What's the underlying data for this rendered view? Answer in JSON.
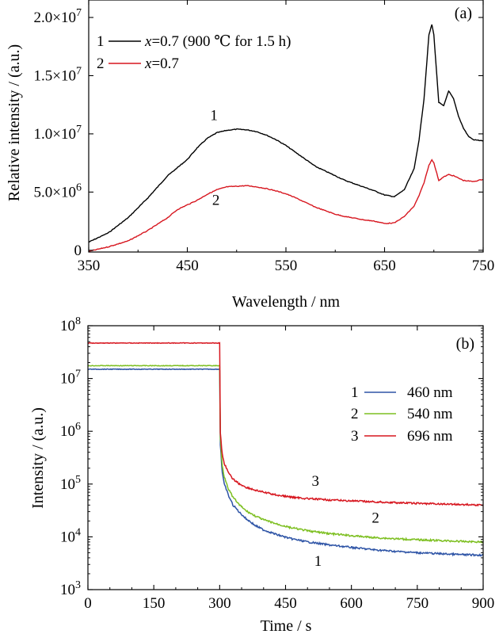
{
  "chart_data": [
    {
      "type": "line",
      "panel_label": "(a)",
      "xlabel": "Wavelength / nm",
      "ylabel": "Relative intensity / (a.u.)",
      "xlim": [
        350,
        750
      ],
      "ylim": [
        -150000,
        21500000
      ],
      "xticks": [
        350,
        450,
        550,
        650,
        750
      ],
      "yticks": [
        {
          "value": 0,
          "mantissa": "0",
          "exponent": ""
        },
        {
          "value": 5000000,
          "mantissa": "5.0×10",
          "exponent": "6"
        },
        {
          "value": 10000000,
          "mantissa": "1.0×10",
          "exponent": "7"
        },
        {
          "value": 15000000,
          "mantissa": "1.5×10",
          "exponent": "7"
        },
        {
          "value": 20000000,
          "mantissa": "2.0×10",
          "exponent": "7"
        }
      ],
      "legend_position": "top-left",
      "series": [
        {
          "id": "1",
          "legend_num": "1",
          "legend_var": "x",
          "legend_text": "=0.7 (900 ℃ for 1.5 h)",
          "color": "#000000",
          "x": [
            350,
            370,
            390,
            410,
            430,
            440,
            450,
            460,
            470,
            480,
            490,
            500,
            510,
            520,
            530,
            540,
            550,
            560,
            570,
            580,
            590,
            600,
            610,
            620,
            630,
            640,
            650,
            660,
            670,
            680,
            685,
            690,
            695,
            698,
            700,
            705,
            710,
            715,
            720,
            725,
            730,
            735,
            740,
            750
          ],
          "y": [
            700000,
            1500000,
            2800000,
            4500000,
            6400000,
            7100000,
            7800000,
            8800000,
            9600000,
            10100000,
            10300000,
            10400000,
            10350000,
            10200000,
            9900000,
            9500000,
            9000000,
            8400000,
            7800000,
            7200000,
            6800000,
            6400000,
            6000000,
            5700000,
            5400000,
            5100000,
            4750000,
            4600000,
            5200000,
            7000000,
            9500000,
            13000000,
            18500000,
            19400000,
            18500000,
            12700000,
            12400000,
            13700000,
            13000000,
            11500000,
            10500000,
            9800000,
            9500000,
            9400000
          ]
        },
        {
          "id": "2",
          "legend_num": "2",
          "legend_var": "x",
          "legend_text": "=0.7",
          "color": "#d7161f",
          "x": [
            350,
            370,
            390,
            410,
            430,
            440,
            450,
            460,
            470,
            480,
            490,
            500,
            510,
            520,
            530,
            540,
            550,
            560,
            570,
            580,
            590,
            600,
            610,
            620,
            630,
            640,
            650,
            660,
            670,
            680,
            685,
            690,
            695,
            698,
            700,
            705,
            710,
            715,
            720,
            730,
            740,
            750
          ],
          "y": [
            -100000,
            300000,
            800000,
            1700000,
            2800000,
            3500000,
            3900000,
            4300000,
            4800000,
            5200000,
            5450000,
            5500000,
            5550000,
            5450000,
            5300000,
            5100000,
            4850000,
            4500000,
            4100000,
            3700000,
            3400000,
            3100000,
            2900000,
            2750000,
            2600000,
            2500000,
            2300000,
            2350000,
            2900000,
            3800000,
            4700000,
            5800000,
            7300000,
            7800000,
            7500000,
            6000000,
            6300000,
            6500000,
            6400000,
            6000000,
            5900000,
            6100000
          ]
        }
      ],
      "annotations": [
        {
          "text": "1",
          "x": 477,
          "y": 11200000,
          "color": "#000000"
        },
        {
          "text": "2",
          "x": 479,
          "y": 3900000,
          "color": "#d7161f"
        }
      ]
    },
    {
      "type": "line",
      "panel_label": "(b)",
      "xlabel": "Time / s",
      "ylabel": "Intensity / (a.u.)",
      "xlim": [
        0,
        900
      ],
      "ylim": [
        1000,
        100000000
      ],
      "yscale": "log",
      "xticks": [
        0,
        150,
        300,
        450,
        600,
        750,
        900
      ],
      "yticks": [
        {
          "value": 1000,
          "base": "10",
          "exponent": "3"
        },
        {
          "value": 10000,
          "base": "10",
          "exponent": "4"
        },
        {
          "value": 100000,
          "base": "10",
          "exponent": "5"
        },
        {
          "value": 1000000,
          "base": "10",
          "exponent": "6"
        },
        {
          "value": 10000000,
          "base": "10",
          "exponent": "7"
        },
        {
          "value": 100000000,
          "base": "10",
          "exponent": "8"
        }
      ],
      "legend_position": "right",
      "series": [
        {
          "id": "1",
          "legend_num": "1",
          "name": "460 nm",
          "color": "#2e54a6",
          "x": [
            0,
            300,
            301,
            305,
            310,
            320,
            330,
            345,
            360,
            380,
            400,
            430,
            460,
            500,
            550,
            600,
            650,
            700,
            750,
            800,
            850,
            900
          ],
          "y": [
            15000000,
            15000000,
            600000,
            180000,
            100000,
            60000,
            40000,
            29000,
            22000,
            16500,
            13500,
            11000,
            9300,
            8000,
            7000,
            6300,
            5700,
            5300,
            5000,
            4800,
            4600,
            4500
          ]
        },
        {
          "id": "2",
          "legend_num": "2",
          "name": "540 nm",
          "color": "#7dbf21",
          "x": [
            0,
            300,
            301,
            305,
            310,
            320,
            330,
            345,
            360,
            380,
            400,
            430,
            460,
            500,
            550,
            600,
            650,
            700,
            750,
            800,
            850,
            900
          ],
          "y": [
            17500000,
            17500000,
            800000,
            240000,
            140000,
            80000,
            56000,
            40000,
            31000,
            25000,
            21000,
            17500,
            15000,
            13000,
            11500,
            10500,
            9700,
            9200,
            8800,
            8500,
            8200,
            8000
          ]
        },
        {
          "id": "3",
          "legend_num": "3",
          "name": "696 nm",
          "color": "#d7161f",
          "x": [
            0,
            300,
            301,
            305,
            310,
            320,
            330,
            345,
            360,
            380,
            400,
            430,
            460,
            500,
            550,
            600,
            650,
            700,
            750,
            800,
            850,
            900
          ],
          "y": [
            47000000,
            47000000,
            1000000,
            400000,
            250000,
            160000,
            125000,
            100000,
            87000,
            77000,
            70000,
            62000,
            57000,
            53000,
            50000,
            48000,
            46000,
            44500,
            43000,
            42000,
            41000,
            40000
          ]
        }
      ],
      "annotations": [
        {
          "text": "3",
          "x": 518,
          "y": 93000,
          "color": "#d7161f"
        },
        {
          "text": "2",
          "x": 655,
          "y": 18500,
          "color": "#7dbf21"
        },
        {
          "text": "1",
          "x": 524,
          "y": 2800,
          "color": "#000000"
        }
      ]
    }
  ]
}
